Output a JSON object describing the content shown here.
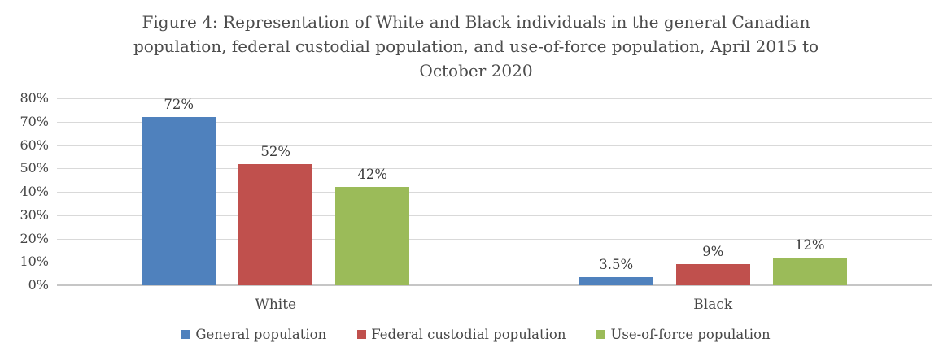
{
  "chart_data": {
    "type": "bar",
    "title": "Figure 4: Representation of White and Black individuals in the general Canadian population, federal custodial population, and use-of-force population, April 2015 to October 2020",
    "title_lines": [
      "Figure 4: Representation of White and Black individuals in the general Canadian",
      "population, federal custodial population, and use-of-force population, April 2015 to",
      "October 2020"
    ],
    "categories": [
      "White",
      "Black"
    ],
    "series": [
      {
        "name": "General population",
        "color": "#4F81BD",
        "values": [
          72,
          3.5
        ],
        "value_labels": [
          "72%",
          "3.5%"
        ]
      },
      {
        "name": "Federal custodial population",
        "color": "#C0504D",
        "values": [
          52,
          9
        ],
        "value_labels": [
          "52%",
          "9%"
        ]
      },
      {
        "name": "Use-of-force population",
        "color": "#9BBB59",
        "values": [
          42,
          12
        ],
        "value_labels": [
          "42%",
          "12%"
        ]
      }
    ],
    "xlabel": "",
    "ylabel": "",
    "ylim": [
      0,
      80
    ],
    "ytick_step": 10,
    "ytick_labels": [
      "0%",
      "10%",
      "20%",
      "30%",
      "40%",
      "50%",
      "60%",
      "70%",
      "80%"
    ],
    "grid": true,
    "legend_position": "bottom",
    "colors": {
      "gridline": "#d9d9d9",
      "axis_line": "#c6c6c6",
      "title_text": "#4c4c4c",
      "label_text": "#474747",
      "value_label_text": "#3d3d3d",
      "background": "#ffffff"
    }
  }
}
